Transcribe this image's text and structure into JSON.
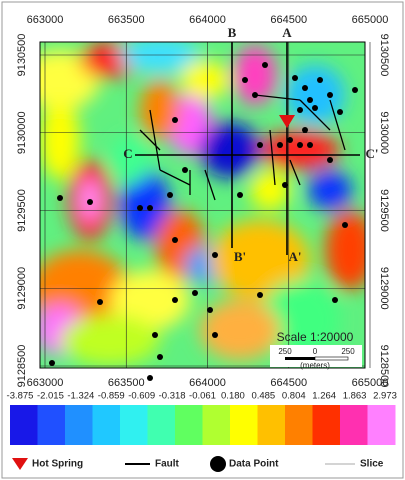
{
  "map": {
    "x_ticks": [
      663000,
      663500,
      664000,
      664500,
      665000
    ],
    "y_ticks": [
      9130500,
      9130000,
      9129500,
      9129000,
      9128500
    ],
    "section_labels": {
      "a": "A",
      "a_end": "A'",
      "b": "B",
      "b_end": "B'",
      "c": "C",
      "c_end": "C'"
    },
    "scale": {
      "title": "Scale 1:20000",
      "left": "250",
      "zero": "0",
      "right": "250",
      "unit": "(meters)"
    }
  },
  "colorbar": {
    "labels": [
      "-3.875",
      "-2.015",
      "-1.324",
      "-0.859",
      "-0.609",
      "-0.318",
      "-0.061",
      "0.180",
      "0.485",
      "0.804",
      "1.264",
      "1.863",
      "2.973"
    ]
  },
  "legend": {
    "items": [
      "Hot Spring",
      "Fault",
      "Data Point",
      "Slice"
    ]
  }
}
